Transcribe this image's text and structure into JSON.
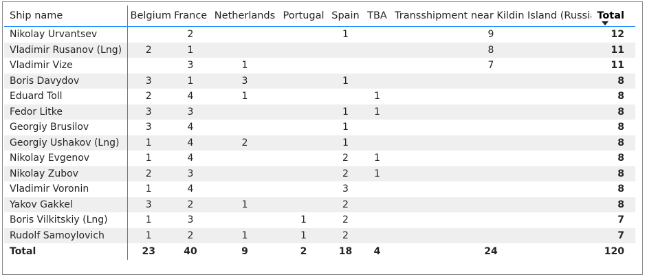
{
  "table": {
    "headers": [
      "Ship name",
      "Belgium",
      "France",
      "Netherlands",
      "Portugal",
      "Spain",
      "TBA",
      "Transshipment near Kildin Island (Russia)",
      "Total"
    ],
    "rows": [
      {
        "name": "Nikolay Urvantsev",
        "values": [
          "",
          "2",
          "",
          "",
          "1",
          "",
          "9",
          "12"
        ]
      },
      {
        "name": "Vladimir Rusanov (Lng)",
        "values": [
          "2",
          "1",
          "",
          "",
          "",
          "",
          "8",
          "11"
        ]
      },
      {
        "name": "Vladimir Vize",
        "values": [
          "",
          "3",
          "1",
          "",
          "",
          "",
          "7",
          "11"
        ]
      },
      {
        "name": "Boris Davydov",
        "values": [
          "3",
          "1",
          "3",
          "",
          "1",
          "",
          "",
          "8"
        ]
      },
      {
        "name": "Eduard Toll",
        "values": [
          "2",
          "4",
          "1",
          "",
          "",
          "1",
          "",
          "8"
        ]
      },
      {
        "name": "Fedor Litke",
        "values": [
          "3",
          "3",
          "",
          "",
          "1",
          "1",
          "",
          "8"
        ]
      },
      {
        "name": "Georgiy Brusilov",
        "values": [
          "3",
          "4",
          "",
          "",
          "1",
          "",
          "",
          "8"
        ]
      },
      {
        "name": "Georgiy Ushakov (Lng)",
        "values": [
          "1",
          "4",
          "2",
          "",
          "1",
          "",
          "",
          "8"
        ]
      },
      {
        "name": "Nikolay Evgenov",
        "values": [
          "1",
          "4",
          "",
          "",
          "2",
          "1",
          "",
          "8"
        ]
      },
      {
        "name": "Nikolay Zubov",
        "values": [
          "2",
          "3",
          "",
          "",
          "2",
          "1",
          "",
          "8"
        ]
      },
      {
        "name": "Vladimir Voronin",
        "values": [
          "1",
          "4",
          "",
          "",
          "3",
          "",
          "",
          "8"
        ]
      },
      {
        "name": "Yakov Gakkel",
        "values": [
          "3",
          "2",
          "1",
          "",
          "2",
          "",
          "",
          "8"
        ]
      },
      {
        "name": "Boris Vilkitskiy (Lng)",
        "values": [
          "1",
          "3",
          "",
          "1",
          "2",
          "",
          "",
          "7"
        ]
      },
      {
        "name": "Rudolf Samoylovich",
        "values": [
          "1",
          "2",
          "1",
          "1",
          "2",
          "",
          "",
          "7"
        ]
      }
    ],
    "footer": {
      "label": "Total",
      "values": [
        "23",
        "40",
        "9",
        "2",
        "18",
        "4",
        "24",
        "120"
      ]
    },
    "sort": {
      "column": "Total",
      "direction": "descending",
      "icon": "sort-descending-icon"
    }
  },
  "colors": {
    "accent": "#118dff",
    "stripe": "#efefef",
    "border": "#8a8886",
    "text": "#252423"
  }
}
